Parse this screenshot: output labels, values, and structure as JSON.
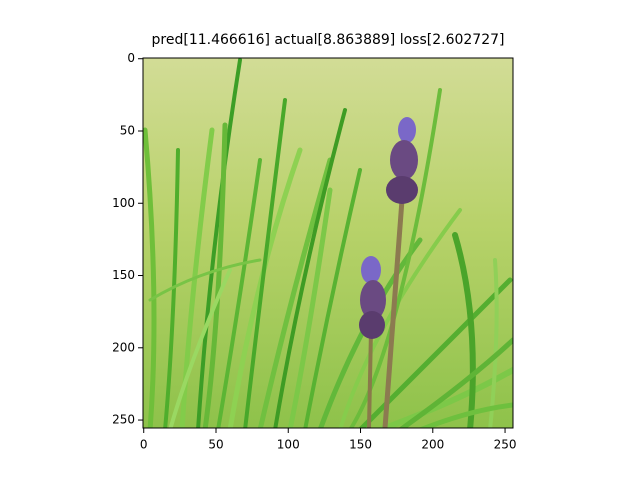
{
  "chart_data": {
    "type": "image",
    "title": "pred[11.466616] actual[8.863889] loss[2.602727]",
    "xlim": [
      -0.5,
      255.5
    ],
    "ylim": [
      255.5,
      -0.5
    ],
    "xticks": [
      0,
      50,
      100,
      150,
      200,
      250
    ],
    "yticks": [
      0,
      50,
      100,
      150,
      200,
      250
    ]
  }
}
